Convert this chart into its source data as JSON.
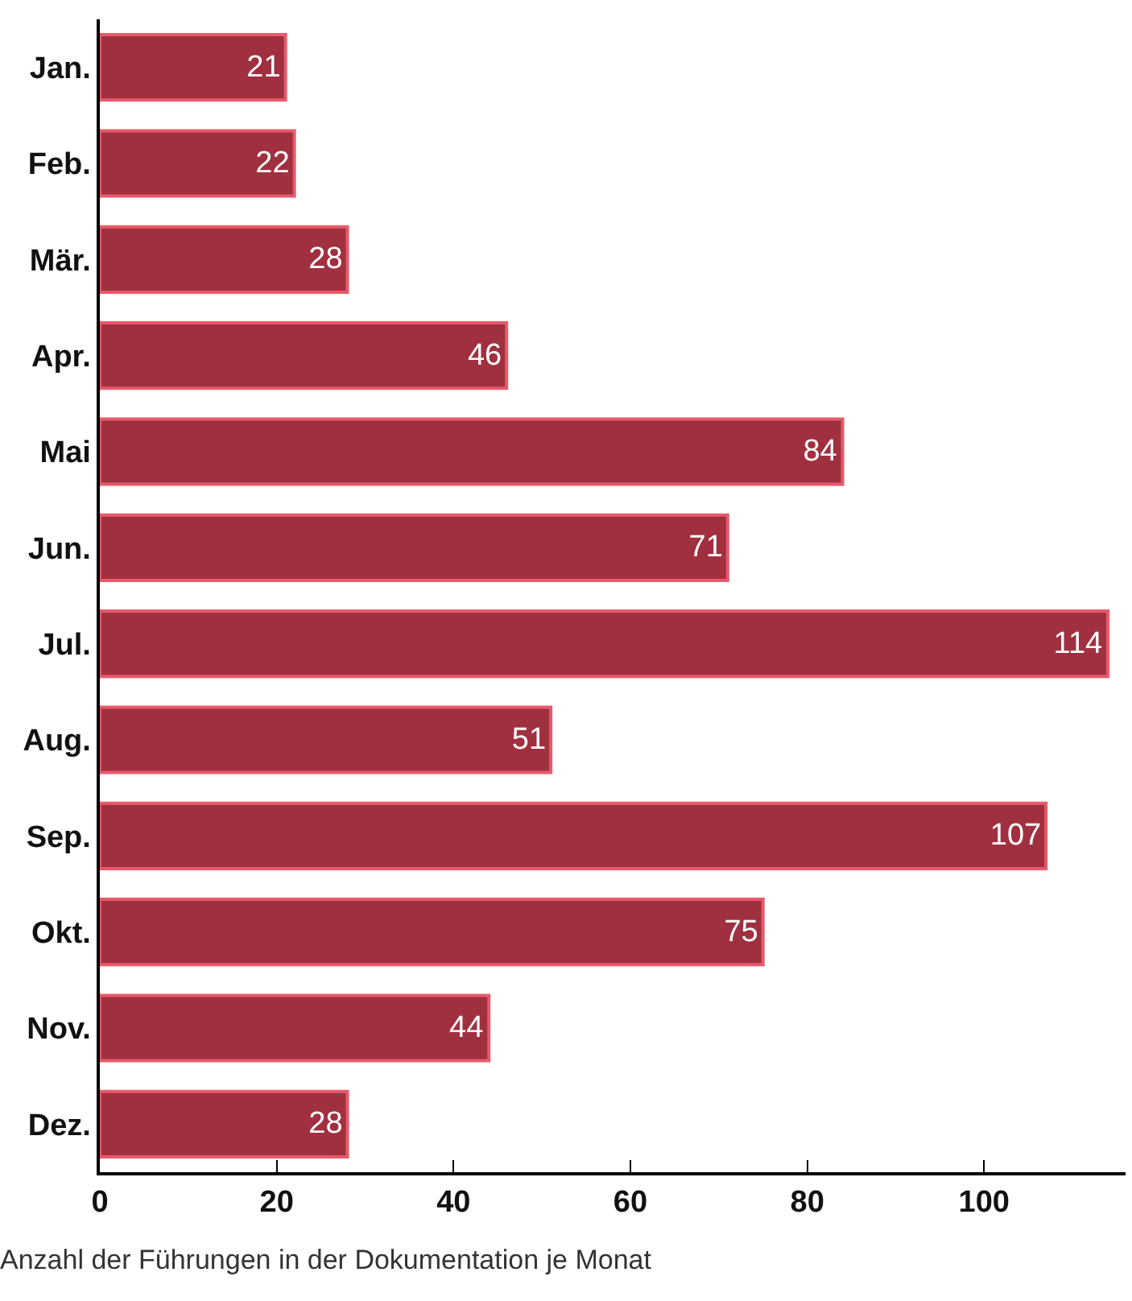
{
  "chart_data": {
    "type": "bar",
    "orientation": "horizontal",
    "categories": [
      "Jan.",
      "Feb.",
      "Mär.",
      "Apr.",
      "Mai",
      "Jun.",
      "Jul.",
      "Aug.",
      "Sep.",
      "Okt.",
      "Nov.",
      "Dez."
    ],
    "values": [
      21,
      22,
      28,
      46,
      84,
      71,
      114,
      51,
      107,
      75,
      44,
      28
    ],
    "color": "#a03040",
    "data_labels": true,
    "xlim": [
      0,
      116
    ],
    "xticks": [
      0,
      20,
      40,
      60,
      80,
      100
    ],
    "grid": false,
    "annotations": [
      "Anzahl der Führungen in der Dokumentation je Monat"
    ]
  }
}
